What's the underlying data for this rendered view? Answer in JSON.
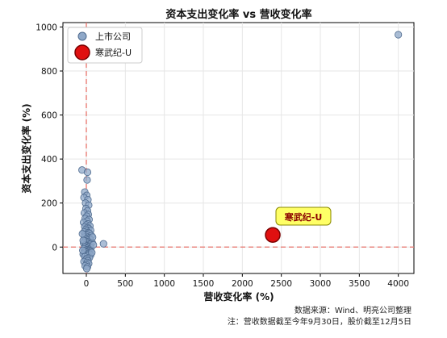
{
  "chart_data": {
    "type": "scatter",
    "title": "资本支出变化率 vs 营收变化率",
    "xlabel": "营收变化率 (%)",
    "ylabel": "资本支出变化率 (%)",
    "xlim": [
      -300,
      4200
    ],
    "ylim": [
      -120,
      1020
    ],
    "xticks": [
      0,
      500,
      1000,
      1500,
      2000,
      2500,
      3000,
      3500,
      4000
    ],
    "yticks": [
      0,
      200,
      400,
      600,
      800,
      1000
    ],
    "grid": true,
    "legend_position": "top-left",
    "reference_lines": {
      "x": 0,
      "y": 0,
      "color": "#e8726a"
    },
    "series": [
      {
        "name": "上市公司",
        "color": "#8fa8c8",
        "edge": "#4e6a8e",
        "points": [
          [
            -55,
            350
          ],
          [
            15,
            340
          ],
          [
            10,
            305
          ],
          [
            -20,
            250
          ],
          [
            5,
            235
          ],
          [
            -30,
            225
          ],
          [
            20,
            215
          ],
          [
            -10,
            200
          ],
          [
            30,
            190
          ],
          [
            -5,
            175
          ],
          [
            15,
            165
          ],
          [
            -25,
            155
          ],
          [
            25,
            148
          ],
          [
            5,
            140
          ],
          [
            -15,
            130
          ],
          [
            35,
            125
          ],
          [
            10,
            118
          ],
          [
            -35,
            112
          ],
          [
            20,
            105
          ],
          [
            0,
            100
          ],
          [
            45,
            96
          ],
          [
            -20,
            92
          ],
          [
            15,
            88
          ],
          [
            30,
            84
          ],
          [
            -5,
            80
          ],
          [
            55,
            76
          ],
          [
            5,
            72
          ],
          [
            -30,
            68
          ],
          [
            25,
            65
          ],
          [
            40,
            62
          ],
          [
            -10,
            58
          ],
          [
            15,
            55
          ],
          [
            65,
            52
          ],
          [
            0,
            48
          ],
          [
            -25,
            45
          ],
          [
            35,
            42
          ],
          [
            20,
            40
          ],
          [
            -5,
            37
          ],
          [
            50,
            34
          ],
          [
            10,
            31
          ],
          [
            -15,
            28
          ],
          [
            30,
            25
          ],
          [
            5,
            22
          ],
          [
            75,
            20
          ],
          [
            -35,
            18
          ],
          [
            20,
            15
          ],
          [
            45,
            12
          ],
          [
            -10,
            10
          ],
          [
            15,
            7
          ],
          [
            0,
            5
          ],
          [
            35,
            3
          ],
          [
            -20,
            0
          ],
          [
            25,
            -2
          ],
          [
            60,
            -4
          ],
          [
            5,
            -6
          ],
          [
            -30,
            -8
          ],
          [
            40,
            -10
          ],
          [
            10,
            -12
          ],
          [
            -5,
            -14
          ],
          [
            30,
            -16
          ],
          [
            -15,
            -18
          ],
          [
            50,
            -20
          ],
          [
            20,
            -22
          ],
          [
            0,
            -24
          ],
          [
            -25,
            -26
          ],
          [
            35,
            -28
          ],
          [
            10,
            -30
          ],
          [
            -40,
            -32
          ],
          [
            25,
            -34
          ],
          [
            55,
            -36
          ],
          [
            -10,
            -38
          ],
          [
            15,
            -40
          ],
          [
            -20,
            -44
          ],
          [
            40,
            -48
          ],
          [
            5,
            -52
          ],
          [
            -5,
            -58
          ],
          [
            20,
            -62
          ],
          [
            -30,
            -66
          ],
          [
            10,
            -70
          ],
          [
            30,
            -75
          ],
          [
            0,
            -80
          ],
          [
            -15,
            -85
          ],
          [
            15,
            -90
          ],
          [
            5,
            -98
          ],
          [
            -40,
            30
          ],
          [
            -45,
            -15
          ],
          [
            -50,
            60
          ],
          [
            70,
            -25
          ],
          [
            80,
            45
          ],
          [
            90,
            10
          ],
          [
            220,
            15
          ],
          [
            4000,
            965
          ]
        ]
      },
      {
        "name": "寒武纪-U",
        "color": "#e01010",
        "edge": "#7a0000",
        "points": [
          [
            2390,
            55
          ]
        ],
        "annotation": "寒武纪-U"
      }
    ]
  },
  "footnotes": {
    "source": "数据来源：Wind、明亮公司整理",
    "note": "注：营收数据截至今年9月30日，股价截至12月5日"
  }
}
